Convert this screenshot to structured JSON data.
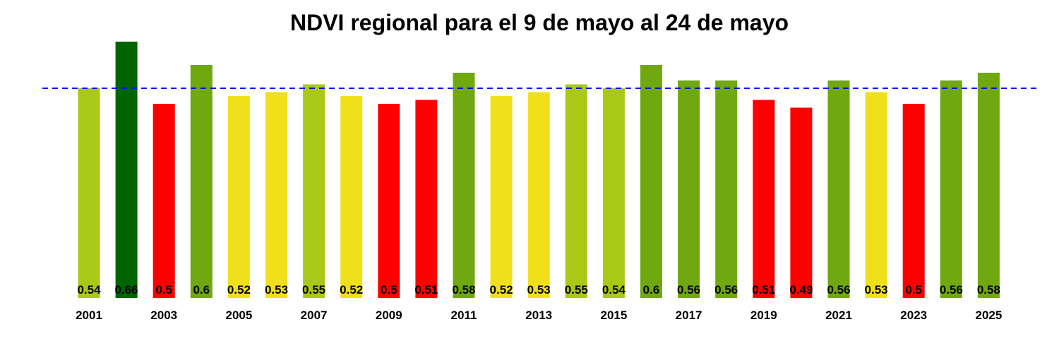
{
  "chart_data": {
    "type": "bar",
    "title": "NDVI regional para el 9 de mayo al 24 de mayo",
    "xlabel": "",
    "ylabel": "",
    "categories": [
      "2001",
      "2002",
      "2003",
      "2004",
      "2005",
      "2006",
      "2007",
      "2008",
      "2009",
      "2010",
      "2011",
      "2012",
      "2013",
      "2014",
      "2015",
      "2016",
      "2017",
      "2018",
      "2019",
      "2020",
      "2021",
      "2022",
      "2023",
      "2024",
      "2025"
    ],
    "values": [
      0.54,
      0.66,
      0.5,
      0.6,
      0.52,
      0.53,
      0.55,
      0.52,
      0.5,
      0.51,
      0.58,
      0.52,
      0.53,
      0.55,
      0.54,
      0.6,
      0.56,
      0.56,
      0.51,
      0.49,
      0.56,
      0.53,
      0.5,
      0.56,
      0.58
    ],
    "value_labels": [
      "0.54",
      "0.66",
      "0.5",
      "0.6",
      "0.52",
      "0.53",
      "0.55",
      "0.52",
      "0.5",
      "0.51",
      "0.58",
      "0.52",
      "0.53",
      "0.55",
      "0.54",
      "0.6",
      "0.56",
      "0.56",
      "0.51",
      "0.49",
      "0.56",
      "0.53",
      "0.5",
      "0.56",
      "0.58"
    ],
    "tick_labels": [
      "2001",
      "",
      "2003",
      "",
      "2005",
      "",
      "2007",
      "",
      "2009",
      "",
      "2011",
      "",
      "2013",
      "",
      "2015",
      "",
      "2017",
      "",
      "2019",
      "",
      "2021",
      "",
      "2023",
      "",
      "2025"
    ],
    "bar_colors": [
      "#aac916",
      "#006400",
      "#ff0000",
      "#6fa80f",
      "#f0e01a",
      "#f0e01a",
      "#aac916",
      "#f0e01a",
      "#ff0000",
      "#ff0000",
      "#6fa80f",
      "#f0e01a",
      "#f0e01a",
      "#aac916",
      "#aac916",
      "#6fa80f",
      "#6fa80f",
      "#6fa80f",
      "#ff0000",
      "#ff0000",
      "#6fa80f",
      "#f0e01a",
      "#ff0000",
      "#6fa80f",
      "#6fa80f"
    ],
    "reference_line": {
      "value": 0.54,
      "color": "#0000ff",
      "style": "dashed"
    },
    "ylim": [
      0,
      0.66
    ],
    "grid": false,
    "legend": "none"
  }
}
